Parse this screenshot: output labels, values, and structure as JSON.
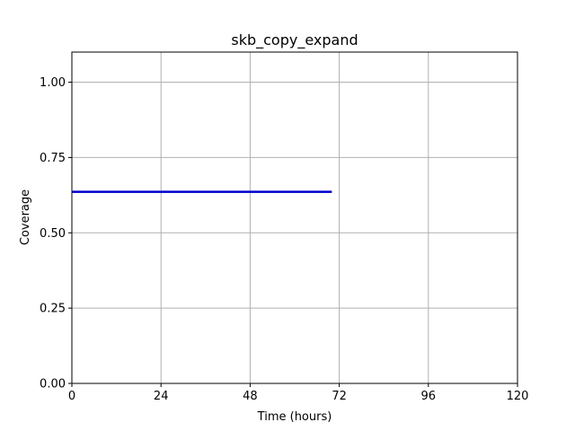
{
  "chart_data": {
    "type": "line",
    "title": "skb_copy_expand",
    "xlabel": "Time (hours)",
    "ylabel": "Coverage",
    "xlim": [
      0,
      120
    ],
    "ylim": [
      0,
      1.1
    ],
    "xticks": [
      0,
      24,
      48,
      72,
      96,
      120
    ],
    "xtick_labels": [
      "0",
      "24",
      "48",
      "72",
      "96",
      "120"
    ],
    "yticks": [
      0,
      0.25,
      0.5,
      0.75,
      1.0
    ],
    "ytick_labels": [
      "0.00",
      "0.25",
      "0.50",
      "0.75",
      "1.00"
    ],
    "grid": true,
    "series": [
      {
        "color": "#0000cc",
        "x": [
          0,
          70
        ],
        "y": [
          0.636,
          0.636
        ]
      }
    ]
  }
}
